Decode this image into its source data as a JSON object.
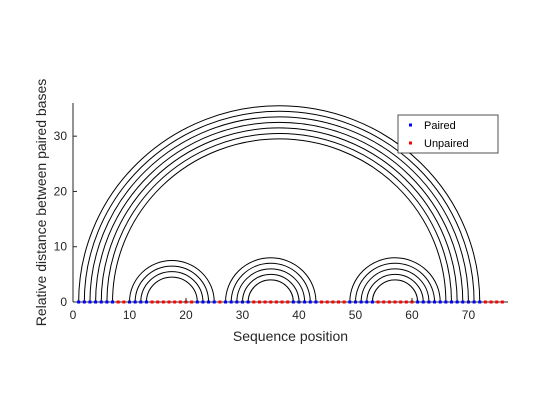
{
  "chart_data": {
    "type": "arc",
    "xlabel": "Sequence position",
    "ylabel": "Relative distance between paired bases",
    "xlim": [
      0,
      77
    ],
    "ylim": [
      0,
      36
    ],
    "xticks": [
      0,
      10,
      20,
      30,
      40,
      50,
      60,
      70
    ],
    "yticks": [
      0,
      10,
      20,
      30
    ],
    "grid": false,
    "legend": {
      "placement": "top-right",
      "entries": [
        {
          "name": "Paired",
          "color": "#0000ff"
        },
        {
          "name": "Unpaired",
          "color": "#ff0000"
        }
      ]
    },
    "sequence_length": 76,
    "pairs": [
      [
        1,
        72
      ],
      [
        2,
        71
      ],
      [
        3,
        70
      ],
      [
        4,
        69
      ],
      [
        5,
        68
      ],
      [
        6,
        67
      ],
      [
        7,
        66
      ],
      [
        10,
        25
      ],
      [
        11,
        24
      ],
      [
        12,
        23
      ],
      [
        13,
        22
      ],
      [
        27,
        43
      ],
      [
        28,
        42
      ],
      [
        29,
        41
      ],
      [
        30,
        40
      ],
      [
        31,
        39
      ],
      [
        49,
        65
      ],
      [
        50,
        64
      ],
      [
        51,
        63
      ],
      [
        52,
        62
      ],
      [
        53,
        61
      ]
    ],
    "arc_color": "#000000"
  }
}
